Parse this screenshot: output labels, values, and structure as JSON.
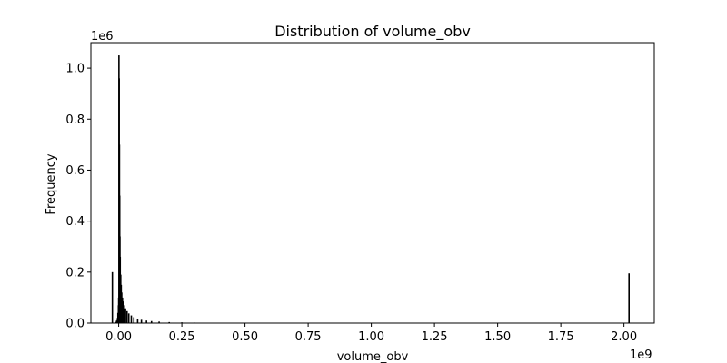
{
  "chart_data": {
    "type": "bar",
    "title": "Distribution of volume_obv",
    "xlabel": "volume_obv",
    "ylabel": "Frequency",
    "x_offset_label": "1e9",
    "y_offset_label": "1e6",
    "xlim": [
      -0.11,
      2.12
    ],
    "ylim": [
      0,
      1.1
    ],
    "x_scale_multiplier": 1000000000,
    "y_scale_multiplier": 1000000,
    "x_ticks": [
      0.0,
      0.25,
      0.5,
      0.75,
      1.0,
      1.25,
      1.5,
      1.75,
      2.0
    ],
    "x_tick_labels": [
      "0.00",
      "0.25",
      "0.50",
      "0.75",
      "1.00",
      "1.25",
      "1.50",
      "1.75",
      "2.00"
    ],
    "y_ticks": [
      0.0,
      0.2,
      0.4,
      0.6,
      0.8,
      1.0
    ],
    "y_tick_labels": [
      "0.0",
      "0.2",
      "0.4",
      "0.6",
      "0.8",
      "1.0"
    ],
    "grid": false,
    "bar_color": "#000000",
    "series": [
      {
        "x": [
          -0.025,
          -0.012,
          -0.008,
          -0.005,
          -0.003,
          -0.001,
          0.0,
          0.001,
          0.002,
          0.003,
          0.004,
          0.005,
          0.006,
          0.008,
          0.01,
          0.012,
          0.015,
          0.018,
          0.022,
          0.027,
          0.033,
          0.04,
          0.05,
          0.06,
          0.075,
          0.09,
          0.11,
          0.13,
          0.16,
          0.2,
          0.25,
          0.3,
          0.35,
          0.38,
          2.02
        ],
        "values": [
          0.2,
          0.005,
          0.01,
          0.02,
          0.04,
          0.07,
          0.1,
          1.05,
          0.96,
          0.7,
          0.5,
          0.34,
          0.26,
          0.19,
          0.15,
          0.12,
          0.1,
          0.085,
          0.07,
          0.058,
          0.047,
          0.038,
          0.03,
          0.023,
          0.017,
          0.013,
          0.01,
          0.008,
          0.006,
          0.004,
          0.003,
          0.002,
          0.0015,
          0.001,
          0.195
        ]
      }
    ]
  }
}
